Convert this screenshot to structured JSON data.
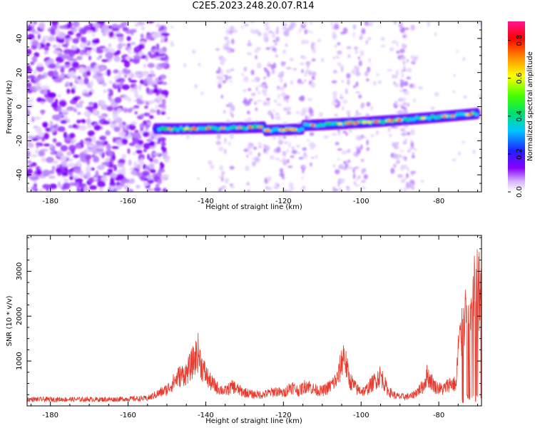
{
  "title": "C2E5.2023.248.20.07.R14",
  "chart_data": [
    {
      "type": "heatmap",
      "xlabel": "Height of straight line (km)",
      "ylabel": "Frequency (Hz)",
      "xlim": [
        -186,
        -69
      ],
      "ylim": [
        -50,
        50
      ],
      "x_ticks": [
        -180,
        -160,
        -140,
        -120,
        -100,
        -80
      ],
      "y_ticks": [
        -40,
        -20,
        0,
        20,
        40
      ],
      "colorbar": {
        "label": "Normalized spectral amplitude",
        "ticks": [
          0.0,
          0.2,
          0.4,
          0.6,
          0.8
        ],
        "range": [
          0,
          0.9
        ]
      },
      "signal_band": {
        "x_start": -153,
        "x_end": -70,
        "y_start": -13,
        "y_end": -4
      },
      "noise_region": {
        "x_start": -186,
        "x_end": -154
      },
      "vertical_streaks": [
        -135,
        -128,
        -123,
        -119,
        -114,
        -105,
        -100,
        -90,
        -88
      ]
    },
    {
      "type": "line",
      "xlabel": "Height of straight line (km)",
      "ylabel": "SNR (10 * v/v)",
      "xlim": [
        -186,
        -69
      ],
      "ylim": [
        0,
        3800
      ],
      "x_ticks": [
        -180,
        -160,
        -140,
        -120,
        -100,
        -80
      ],
      "y_ticks": [
        1000,
        2000,
        3000
      ],
      "series_color": "#e8392c",
      "envelope": [
        [
          -186,
          200
        ],
        [
          -175,
          200
        ],
        [
          -165,
          200
        ],
        [
          -155,
          230
        ],
        [
          -150,
          500
        ],
        [
          -147,
          900
        ],
        [
          -145,
          1000
        ],
        [
          -143,
          1400
        ],
        [
          -142,
          1650
        ],
        [
          -141,
          1200
        ],
        [
          -139,
          750
        ],
        [
          -137,
          550
        ],
        [
          -135,
          450
        ],
        [
          -133,
          600
        ],
        [
          -131,
          450
        ],
        [
          -128,
          350
        ],
        [
          -125,
          350
        ],
        [
          -122,
          450
        ],
        [
          -120,
          380
        ],
        [
          -118,
          600
        ],
        [
          -116,
          450
        ],
        [
          -114,
          650
        ],
        [
          -112,
          500
        ],
        [
          -110,
          450
        ],
        [
          -108,
          600
        ],
        [
          -106,
          850
        ],
        [
          -104.5,
          1600
        ],
        [
          -103,
          800
        ],
        [
          -101,
          500
        ],
        [
          -99,
          450
        ],
        [
          -97,
          700
        ],
        [
          -95,
          950
        ],
        [
          -93,
          450
        ],
        [
          -91,
          300
        ],
        [
          -89,
          280
        ],
        [
          -87,
          300
        ],
        [
          -84,
          600
        ],
        [
          -83,
          950
        ],
        [
          -81,
          600
        ],
        [
          -79,
          500
        ],
        [
          -77,
          700
        ],
        [
          -75.5,
          650
        ],
        [
          -75,
          1800
        ],
        [
          -74,
          2200
        ],
        [
          -73,
          2700
        ],
        [
          -72,
          2600
        ],
        [
          -71.5,
          3000
        ],
        [
          -71,
          3400
        ],
        [
          -70.5,
          3700
        ],
        [
          -69,
          3400
        ]
      ]
    }
  ]
}
